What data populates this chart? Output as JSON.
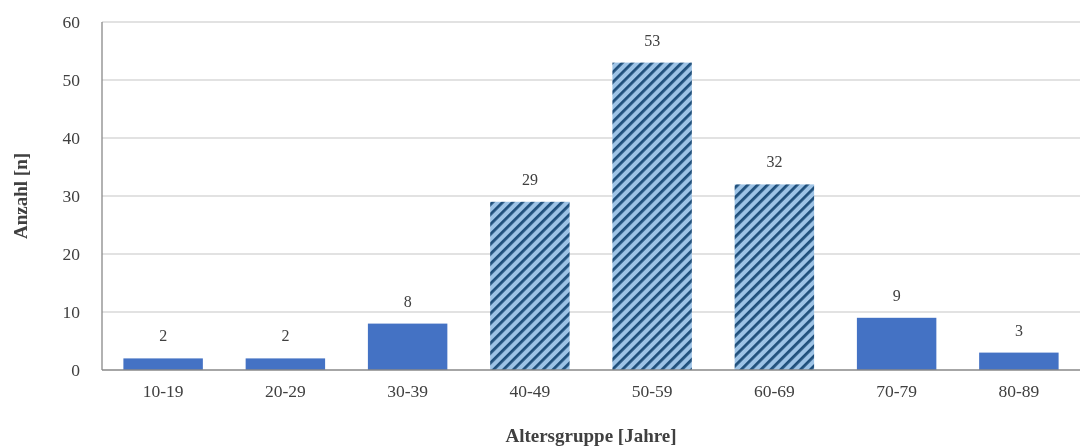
{
  "chart_data": {
    "type": "bar",
    "xlabel": "Altersgruppe [Jahre]",
    "ylabel": "Anzahl [n]",
    "categories": [
      "10-19",
      "20-29",
      "30-39",
      "40-49",
      "50-59",
      "60-69",
      "70-79",
      "80-89"
    ],
    "values": [
      2,
      2,
      8,
      29,
      53,
      32,
      9,
      3
    ],
    "color": "#4472c4",
    "colors": [
      "#4472c4",
      "#4472c4",
      "#4472c4",
      "#9dc3e6",
      "#9dc3e6",
      "#9dc3e6",
      "#4472c4",
      "#4472c4"
    ],
    "ylim": [
      0,
      60
    ],
    "yticks": [
      0,
      10,
      20,
      30,
      40,
      50,
      60
    ],
    "grid": "y",
    "data_labels": true
  }
}
